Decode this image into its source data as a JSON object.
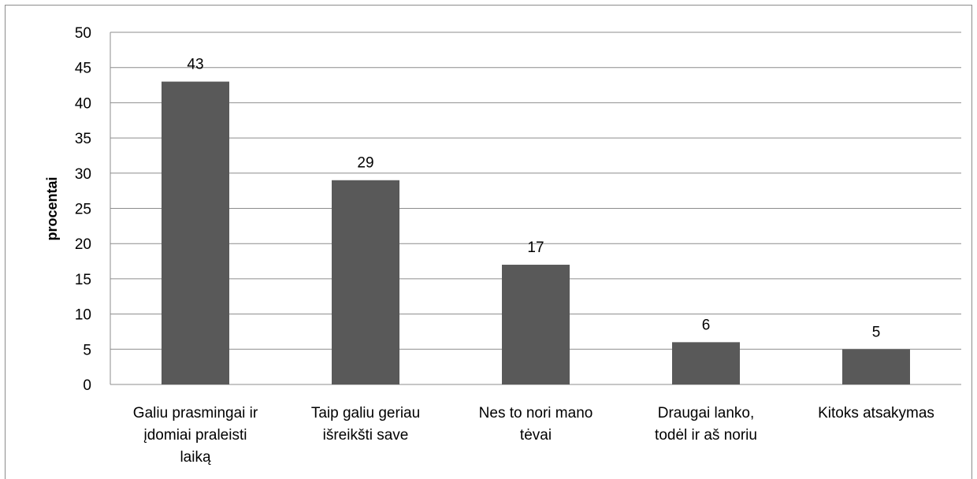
{
  "chart_data": {
    "type": "bar",
    "title": "",
    "xlabel": "",
    "ylabel": "procentai",
    "ylim": [
      0,
      50
    ],
    "ytick_step": 5,
    "grid": true,
    "legend": "none",
    "bar_color": "#595959",
    "grid_color": "#8c8c8c",
    "categories": [
      [
        "Galiu prasmingai ir",
        "įdomiai praleisti",
        "laiką"
      ],
      [
        "Taip galiu geriau",
        "išreikšti save"
      ],
      [
        "Nes to nori mano",
        "tėvai"
      ],
      [
        "Draugai lanko,",
        "todėl ir aš noriu"
      ],
      [
        "Kitoks atsakymas"
      ]
    ],
    "values": [
      43,
      29,
      17,
      6,
      5
    ],
    "data_labels": [
      "43",
      "29",
      "17",
      "6",
      "5"
    ]
  }
}
